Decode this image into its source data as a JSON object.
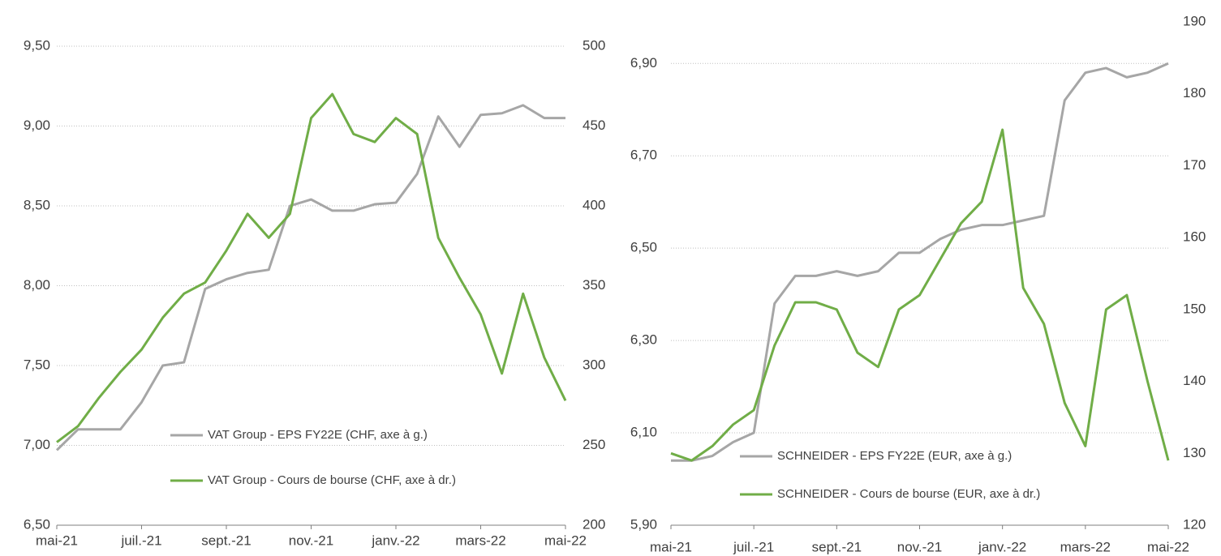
{
  "chart_data": [
    {
      "type": "line",
      "x": [
        0,
        0.5,
        1,
        1.5,
        2,
        2.5,
        3,
        3.5,
        4,
        4.5,
        5,
        5.5,
        6,
        6.5,
        7,
        7.5,
        8,
        8.5,
        9,
        9.5,
        10,
        10.5,
        11,
        11.5,
        12
      ],
      "xlim": [
        0,
        12
      ],
      "xticks": [
        {
          "value": 0,
          "label": "mai-21"
        },
        {
          "value": 2,
          "label": "juil.-21"
        },
        {
          "value": 4,
          "label": "sept.-21"
        },
        {
          "value": 6,
          "label": "nov.-21"
        },
        {
          "value": 8,
          "label": "janv.-22"
        },
        {
          "value": 10,
          "label": "mars-22"
        },
        {
          "value": 12,
          "label": "mai-22"
        }
      ],
      "ylim": [
        6.5,
        9.5
      ],
      "yticks": [
        {
          "value": 6.5,
          "label": "6,50"
        },
        {
          "value": 7,
          "label": "7,00"
        },
        {
          "value": 7.5,
          "label": "7,50"
        },
        {
          "value": 8,
          "label": "8,00"
        },
        {
          "value": 8.5,
          "label": "8,50"
        },
        {
          "value": 9,
          "label": "9,00"
        },
        {
          "value": 9.5,
          "label": "9,50"
        }
      ],
      "y2lim": [
        200,
        500
      ],
      "y2ticks": [
        200,
        250,
        300,
        350,
        400,
        450,
        500
      ],
      "grid": true,
      "series": [
        {
          "name": "VAT Group - EPS FY22E (CHF, axe à g.)",
          "color": "#a6a6a6",
          "axis": "y",
          "values": [
            6.97,
            7.1,
            7.1,
            7.1,
            7.27,
            7.5,
            7.52,
            7.98,
            8.04,
            8.08,
            8.1,
            8.5,
            8.54,
            8.47,
            8.47,
            8.51,
            8.52,
            8.7,
            9.06,
            8.87,
            9.07,
            9.08,
            9.13,
            9.05,
            9.05
          ]
        },
        {
          "name": "VAT Group - Cours de bourse (CHF, axe à dr.)",
          "color": "#70ad47",
          "axis": "y2",
          "values": [
            252,
            262,
            280,
            296,
            310,
            330,
            345,
            352,
            372,
            395,
            380,
            395,
            455,
            470,
            445,
            440,
            455,
            445,
            380,
            355,
            332,
            295,
            345,
            305,
            278
          ]
        }
      ]
    },
    {
      "type": "line",
      "x": [
        0,
        0.5,
        1,
        1.5,
        2,
        2.5,
        3,
        3.5,
        4,
        4.5,
        5,
        5.5,
        6,
        6.5,
        7,
        7.5,
        8,
        8.5,
        9,
        9.5,
        10,
        10.5,
        11,
        11.5,
        12
      ],
      "xlim": [
        0,
        12
      ],
      "xticks": [
        {
          "value": 0,
          "label": "mai-21"
        },
        {
          "value": 2,
          "label": "juil.-21"
        },
        {
          "value": 4,
          "label": "sept.-21"
        },
        {
          "value": 6,
          "label": "nov.-21"
        },
        {
          "value": 8,
          "label": "janv.-22"
        },
        {
          "value": 10,
          "label": "mars-22"
        },
        {
          "value": 12,
          "label": "mai-22"
        }
      ],
      "ylim": [
        5.9,
        6.99
      ],
      "yticks": [
        {
          "value": 5.9,
          "label": "5,90"
        },
        {
          "value": 6.1,
          "label": "6,10"
        },
        {
          "value": 6.3,
          "label": "6,30"
        },
        {
          "value": 6.5,
          "label": "6,50"
        },
        {
          "value": 6.7,
          "label": "6,70"
        },
        {
          "value": 6.9,
          "label": "6,90"
        }
      ],
      "y2lim": [
        120,
        190
      ],
      "y2ticks": [
        120,
        130,
        140,
        150,
        160,
        170,
        180,
        190
      ],
      "grid": true,
      "series": [
        {
          "name": "SCHNEIDER - EPS FY22E (EUR, axe à g.)",
          "color": "#a6a6a6",
          "axis": "y",
          "values": [
            6.04,
            6.04,
            6.05,
            6.08,
            6.1,
            6.38,
            6.44,
            6.44,
            6.45,
            6.44,
            6.45,
            6.49,
            6.49,
            6.52,
            6.54,
            6.55,
            6.55,
            6.56,
            6.57,
            6.82,
            6.88,
            6.89,
            6.87,
            6.88,
            6.9
          ]
        },
        {
          "name": "SCHNEIDER - Cours de bourse (EUR, axe à dr.)",
          "color": "#70ad47",
          "axis": "y2",
          "values": [
            130,
            129,
            131,
            134,
            136,
            145,
            151,
            151,
            150,
            144,
            142,
            150,
            152,
            157,
            162,
            165,
            175,
            153,
            148,
            137,
            131,
            150,
            152,
            140,
            129
          ]
        }
      ]
    }
  ]
}
